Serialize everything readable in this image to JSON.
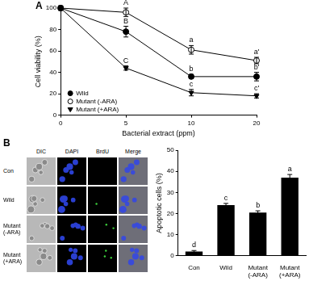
{
  "chart_data": [
    {
      "panel": "A",
      "type": "line",
      "x_label": "Bacterial extract (ppm)",
      "y_label": "Cell viability (%)",
      "categories": [
        "0",
        "5",
        "10",
        "20"
      ],
      "series": [
        {
          "name": "Wild",
          "color": "#000000",
          "marker": "circle",
          "values": [
            100,
            78,
            36,
            36
          ],
          "errors": [
            2,
            5,
            2,
            4
          ],
          "point_labels": [
            null,
            "B",
            "b",
            "b'"
          ]
        },
        {
          "name": "Mutant (-ARA)",
          "color": "#000000",
          "marker": "open_circle",
          "values": [
            100,
            96,
            61,
            51
          ],
          "errors": [
            2,
            4,
            4,
            3
          ],
          "point_labels": [
            null,
            "A",
            "a",
            "a'"
          ]
        },
        {
          "name": "Mutant (+ARA)",
          "color": "#000000",
          "marker": "triangle_down",
          "values": [
            100,
            44,
            21,
            18
          ],
          "errors": [
            2,
            2,
            3,
            2
          ],
          "point_labels": [
            null,
            "C",
            "c",
            "c'"
          ]
        }
      ],
      "ylim": [
        0,
        100
      ],
      "yticks": [
        0,
        20,
        40,
        60,
        80,
        100
      ],
      "grid": false,
      "legend": "lower left"
    },
    {
      "panel": "B",
      "type": "bar",
      "y_label": "Apoptotic cells (%)",
      "categories": [
        "Con",
        "Wild",
        "Mutant (-ARA)",
        "Mutant (+ARA)"
      ],
      "values": [
        2,
        24,
        20.5,
        37
      ],
      "errors": [
        0.5,
        0.8,
        0.8,
        1.5
      ],
      "point_labels": [
        "d",
        "c",
        "b",
        "a"
      ],
      "color": "#000000",
      "ylim": [
        0,
        50
      ],
      "yticks": [
        0,
        10,
        20,
        30,
        40,
        50
      ],
      "grid": false
    }
  ],
  "image_grid": {
    "columns": [
      "DIC",
      "DAPI",
      "BrdU",
      "Merge"
    ],
    "rows": [
      "Con",
      "Wild",
      "Mutant (-ARA)",
      "Mutant (+ARA)"
    ]
  }
}
